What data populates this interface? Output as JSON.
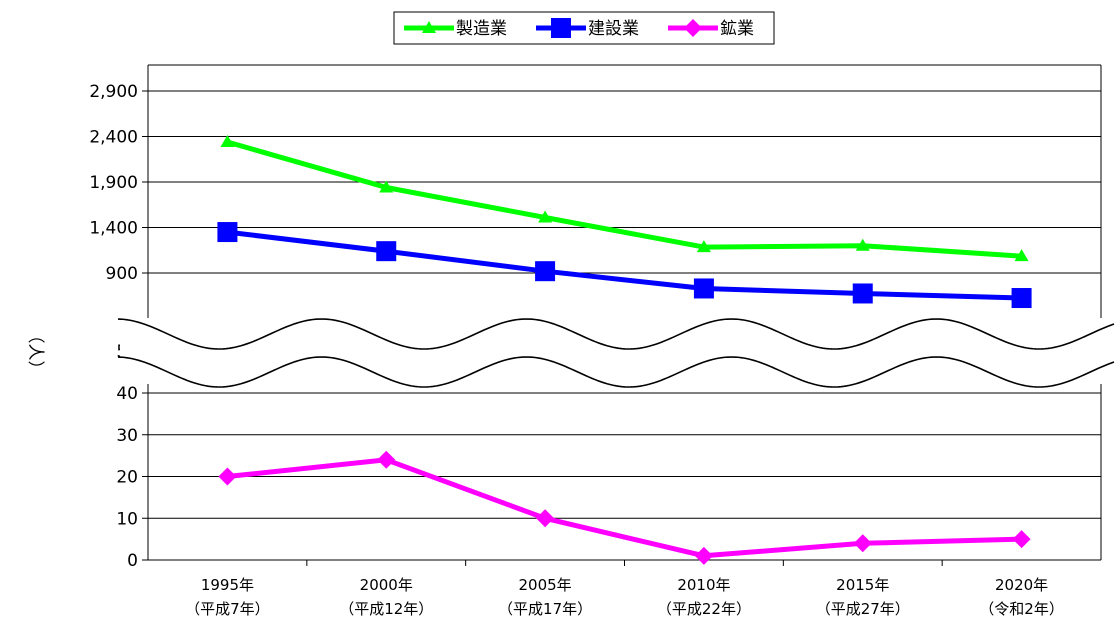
{
  "chart_data": {
    "type": "line",
    "categories": [
      [
        "1995年",
        "（平成7年）"
      ],
      [
        "2000年",
        "（平成12年）"
      ],
      [
        "2005年",
        "（平成17年）"
      ],
      [
        "2010年",
        "（平成22年）"
      ],
      [
        "2015年",
        "（平成27年）"
      ],
      [
        "2020年",
        "（令和2年）"
      ]
    ],
    "ylabel": "（人）",
    "axis_break": true,
    "upper_ticks": [
      "2,900",
      "2,400",
      "1,900",
      "1,400",
      "900"
    ],
    "upper_tick_values": [
      2900,
      2400,
      1900,
      1400,
      900
    ],
    "upper_ylim": [
      500,
      3200
    ],
    "break_ticks": [
      "50",
      "40"
    ],
    "lower_ticks": [
      "40",
      "30",
      "20",
      "10",
      "0"
    ],
    "lower_tick_values": [
      40,
      30,
      20,
      10,
      0
    ],
    "lower_ylim": [
      0,
      40
    ],
    "grid": true,
    "legend_position": "top-center",
    "series": [
      {
        "name": "製造業",
        "axis": "upper",
        "marker": "triangle",
        "color": "#00ff00",
        "values": [
          2340,
          1840,
          1510,
          1185,
          1200,
          1085
        ]
      },
      {
        "name": "建設業",
        "axis": "upper",
        "marker": "square",
        "color": "#0000ff",
        "values": [
          1350,
          1140,
          920,
          730,
          675,
          625
        ]
      },
      {
        "name": "鉱業",
        "axis": "lower",
        "marker": "diamond",
        "color": "#ff00ff",
        "values": [
          20,
          24,
          10,
          1,
          4,
          5
        ]
      }
    ]
  }
}
